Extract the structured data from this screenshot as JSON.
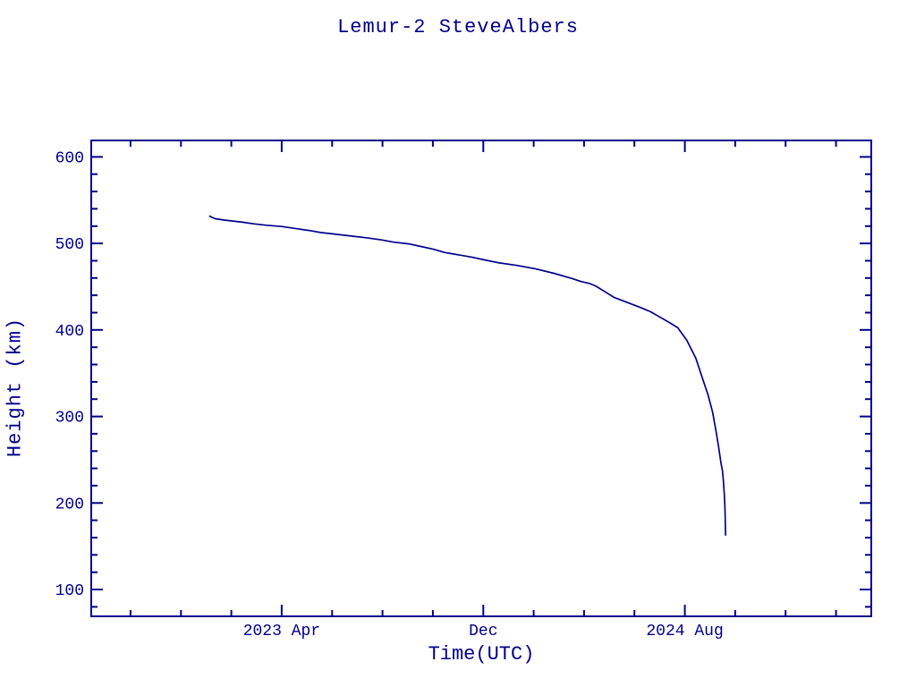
{
  "accent_color": "#00008B",
  "background_color": "#ffffff",
  "chart_data": {
    "type": "line",
    "title": "Lemur-2 SteveAlbers",
    "xlabel": "Time(UTC)",
    "ylabel": "Height (km)",
    "xlim": [
      2022.62,
      2025.2
    ],
    "ylim": [
      69,
      619
    ],
    "grid": false,
    "legend": "none",
    "axis_color": "#00008B",
    "line_color": "#00008B",
    "x_major_ticks": [
      {
        "value": 2023.25,
        "label": "2023 Apr"
      },
      {
        "value": 2023.9167,
        "label": "Dec"
      },
      {
        "value": 2024.5833,
        "label": "2024 Aug"
      }
    ],
    "x_minor_start": 2022.75,
    "x_minor_step": 0.1666667,
    "y_major_ticks": [
      {
        "value": 100,
        "label": "100"
      },
      {
        "value": 200,
        "label": "200"
      },
      {
        "value": 300,
        "label": "300"
      },
      {
        "value": 400,
        "label": "400"
      },
      {
        "value": 500,
        "label": "500"
      },
      {
        "value": 600,
        "label": "600"
      }
    ],
    "y_minor_step": 20,
    "series": [
      {
        "name": "Lemur-2 SteveAlbers height",
        "x": [
          2023.012,
          2023.02,
          2023.03,
          2023.06,
          2023.085,
          2023.12,
          2023.16,
          2023.2,
          2023.25,
          2023.3,
          2023.34,
          2023.38,
          2023.43,
          2023.48,
          2023.53,
          2023.58,
          2023.62,
          2023.67,
          2023.71,
          2023.75,
          2023.79,
          2023.84,
          2023.88,
          2023.92,
          2023.97,
          2024.03,
          2024.09,
          2024.15,
          2024.21,
          2024.24,
          2024.27,
          2024.29,
          2024.32,
          2024.35,
          2024.38,
          2024.41,
          2024.44,
          2024.47,
          2024.5,
          2024.53,
          2024.56,
          2024.59,
          2024.62,
          2024.64,
          2024.66,
          2024.675,
          2024.686,
          2024.695,
          2024.703,
          2024.708,
          2024.711,
          2024.714,
          2024.716,
          2024.717,
          2024.718
        ],
        "y": [
          531.5,
          530,
          528.5,
          527,
          526,
          524.5,
          522.5,
          521,
          519.5,
          517,
          515,
          512.5,
          510.5,
          508.5,
          506.5,
          504,
          501.5,
          499.5,
          496.5,
          493.5,
          489.5,
          486.5,
          484,
          481,
          477.5,
          474.5,
          470.5,
          465.5,
          459.5,
          456,
          453.5,
          450.5,
          444,
          437.5,
          433.5,
          429.5,
          425.5,
          421,
          415,
          409,
          402.5,
          388,
          367,
          346,
          325,
          305,
          284,
          265,
          246,
          237,
          225,
          210,
          195,
          178,
          163
        ]
      }
    ]
  }
}
